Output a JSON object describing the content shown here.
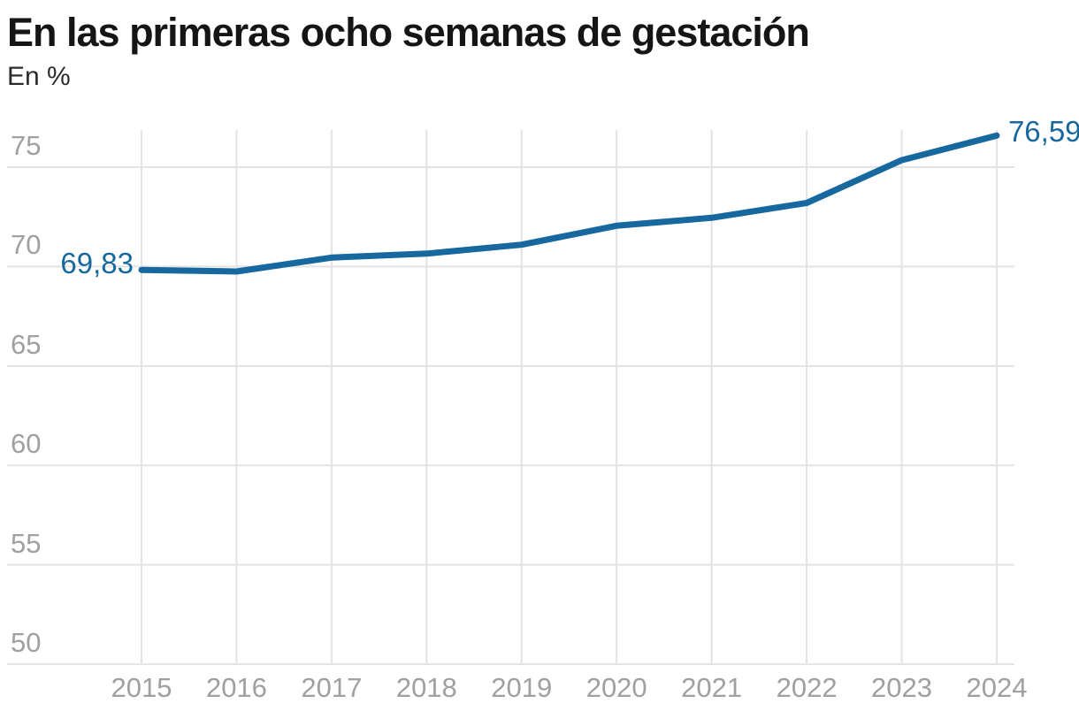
{
  "header": {
    "title": "En las primeras ocho semanas de gestación",
    "subtitle": "En %"
  },
  "chart_data": {
    "type": "line",
    "title": "En las primeras ocho semanas de gestación",
    "ylabel": "En %",
    "xlabel": "",
    "x": [
      2015,
      2016,
      2017,
      2018,
      2019,
      2020,
      2021,
      2022,
      2023,
      2024
    ],
    "values": [
      69.83,
      69.75,
      70.45,
      70.65,
      71.1,
      72.05,
      72.45,
      73.2,
      75.35,
      76.59
    ],
    "y_ticks": [
      50,
      55,
      60,
      65,
      70,
      75
    ],
    "x_tick_labels": [
      "2015",
      "2016",
      "2017",
      "2018",
      "2019",
      "2020",
      "2021",
      "2022",
      "2023",
      "2024"
    ],
    "ylim": [
      50,
      76.9
    ],
    "grid": true,
    "legend": "none",
    "point_labels": {
      "first": "69,83",
      "last": "76,59"
    }
  },
  "colors": {
    "accent": "#17689e",
    "grid": "#e3e3e3",
    "axis_text": "#a0a0a0",
    "title_text": "#151515",
    "subtitle_text": "#2b2b2b"
  }
}
